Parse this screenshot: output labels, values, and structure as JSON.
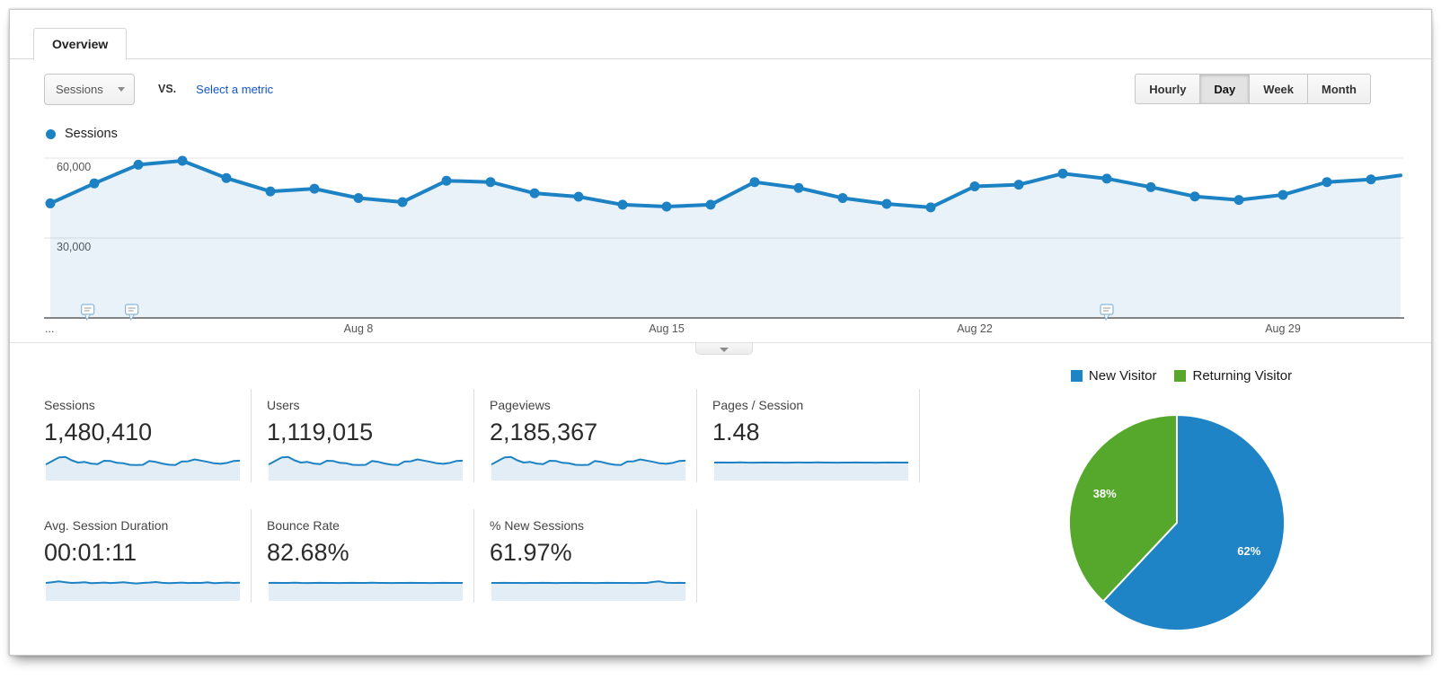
{
  "tab": {
    "label": "Overview"
  },
  "toolbar": {
    "metric_selector": {
      "value": "Sessions"
    },
    "vs_label": "VS.",
    "select_metric_link": "Select a metric",
    "granularity": {
      "options": [
        "Hourly",
        "Day",
        "Week",
        "Month"
      ],
      "selected": "Day"
    }
  },
  "colors": {
    "line_blue": "#1d82c4",
    "area_fill": "rgba(31,125,190,0.10)",
    "spark_fill": "#e3edf5",
    "pie_blue": "#1e84c6",
    "pie_green": "#55a82c",
    "link_blue": "#1155cc",
    "grid_gray": "#e3e3e3",
    "axis_dark": "#3a3a3a"
  },
  "chart_data": [
    {
      "type": "area",
      "title": "Sessions over time (daily)",
      "legend": [
        {
          "label": "Sessions",
          "color": "#1d82c4"
        }
      ],
      "x_unit": "day (Aug 1 - Aug 31)",
      "x_tick_labels": [
        {
          "index": 0,
          "label": "..."
        },
        {
          "index": 7,
          "label": "Aug 8"
        },
        {
          "index": 14,
          "label": "Aug 15"
        },
        {
          "index": 21,
          "label": "Aug 22"
        },
        {
          "index": 28,
          "label": "Aug 29"
        }
      ],
      "y_ticks": [
        {
          "value": 30000,
          "label": "30,000"
        },
        {
          "value": 60000,
          "label": "60,000"
        }
      ],
      "ylim": [
        0,
        75000
      ],
      "grid": true,
      "values": [
        43000,
        50500,
        57500,
        59000,
        52500,
        47500,
        48500,
        45000,
        43500,
        51500,
        51000,
        46800,
        45500,
        42500,
        41800,
        42500,
        51000,
        48800,
        45000,
        42800,
        41500,
        49400,
        50000,
        54200,
        52300,
        49100,
        45600,
        44300,
        46200,
        51000,
        52000
      ],
      "overflow_next_value": 53500,
      "annotations_day_positions": [
        0.85,
        1.85,
        24
      ]
    },
    {
      "type": "pie",
      "title": "New vs Returning Visitors",
      "slices": [
        {
          "label": "New Visitor",
          "value": 62,
          "display": "62%",
          "color": "#1e84c6"
        },
        {
          "label": "Returning Visitor",
          "value": 38,
          "display": "38%",
          "color": "#55a82c"
        }
      ],
      "start_angle_deg": 0,
      "direction": "clockwise",
      "legend_position": "top"
    }
  ],
  "scorecards": {
    "row1": [
      {
        "label": "Sessions",
        "value": "1,480,410",
        "spark": "daily"
      },
      {
        "label": "Users",
        "value": "1,119,015",
        "spark": "daily"
      },
      {
        "label": "Pageviews",
        "value": "2,185,367",
        "spark": "daily"
      },
      {
        "label": "Pages / Session",
        "value": "1.48",
        "spark": "flat"
      }
    ],
    "row2": [
      {
        "label": "Avg. Session Duration",
        "value": "00:01:11",
        "spark": "mild"
      },
      {
        "label": "Bounce Rate",
        "value": "82.68%",
        "spark": "flat"
      },
      {
        "label": "% New Sessions",
        "value": "61.97%",
        "spark": "flat_bump"
      }
    ]
  },
  "spark_profiles": {
    "daily": [
      0.35,
      0.62,
      0.9,
      0.95,
      0.68,
      0.5,
      0.55,
      0.42,
      0.37,
      0.64,
      0.62,
      0.48,
      0.44,
      0.32,
      0.3,
      0.32,
      0.62,
      0.55,
      0.42,
      0.33,
      0.3,
      0.58,
      0.6,
      0.75,
      0.66,
      0.56,
      0.44,
      0.4,
      0.47,
      0.62,
      0.65
    ],
    "mild": [
      0.5,
      0.56,
      0.62,
      0.55,
      0.5,
      0.52,
      0.55,
      0.48,
      0.5,
      0.53,
      0.49,
      0.52,
      0.56,
      0.5,
      0.46,
      0.5,
      0.53,
      0.57,
      0.51,
      0.48,
      0.5,
      0.53,
      0.49,
      0.51,
      0.5,
      0.54,
      0.48,
      0.5,
      0.53,
      0.5,
      0.52
    ],
    "flat": [
      0.5,
      0.51,
      0.5,
      0.5,
      0.52,
      0.5,
      0.49,
      0.5,
      0.51,
      0.5,
      0.5,
      0.49,
      0.5,
      0.51,
      0.5,
      0.5,
      0.52,
      0.5,
      0.5,
      0.49,
      0.5,
      0.5,
      0.51,
      0.5,
      0.5,
      0.49,
      0.5,
      0.51,
      0.5,
      0.5,
      0.5
    ],
    "flat_bump": [
      0.5,
      0.5,
      0.51,
      0.5,
      0.5,
      0.49,
      0.5,
      0.5,
      0.51,
      0.5,
      0.49,
      0.5,
      0.5,
      0.51,
      0.5,
      0.5,
      0.49,
      0.5,
      0.51,
      0.5,
      0.5,
      0.5,
      0.49,
      0.5,
      0.5,
      0.58,
      0.62,
      0.52,
      0.5,
      0.51,
      0.5
    ]
  }
}
